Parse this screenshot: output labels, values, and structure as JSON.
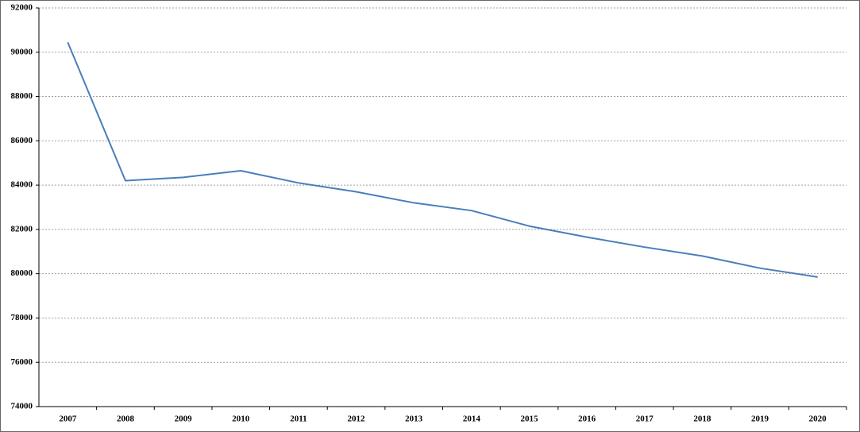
{
  "chart_data": {
    "type": "line",
    "categories": [
      "2007",
      "2008",
      "2009",
      "2010",
      "2011",
      "2012",
      "2013",
      "2014",
      "2015",
      "2016",
      "2017",
      "2018",
      "2019",
      "2020"
    ],
    "series": [
      {
        "color": "#4a7ebb",
        "values": [
          90450,
          84200,
          84350,
          84650,
          84100,
          83700,
          83200,
          82850,
          82150,
          81650,
          81200,
          80800,
          80250,
          79850
        ]
      }
    ],
    "ylim": [
      74000,
      92000
    ],
    "yticks": [
      74000,
      76000,
      78000,
      80000,
      82000,
      84000,
      86000,
      88000,
      90000,
      92000
    ],
    "grid": true
  }
}
